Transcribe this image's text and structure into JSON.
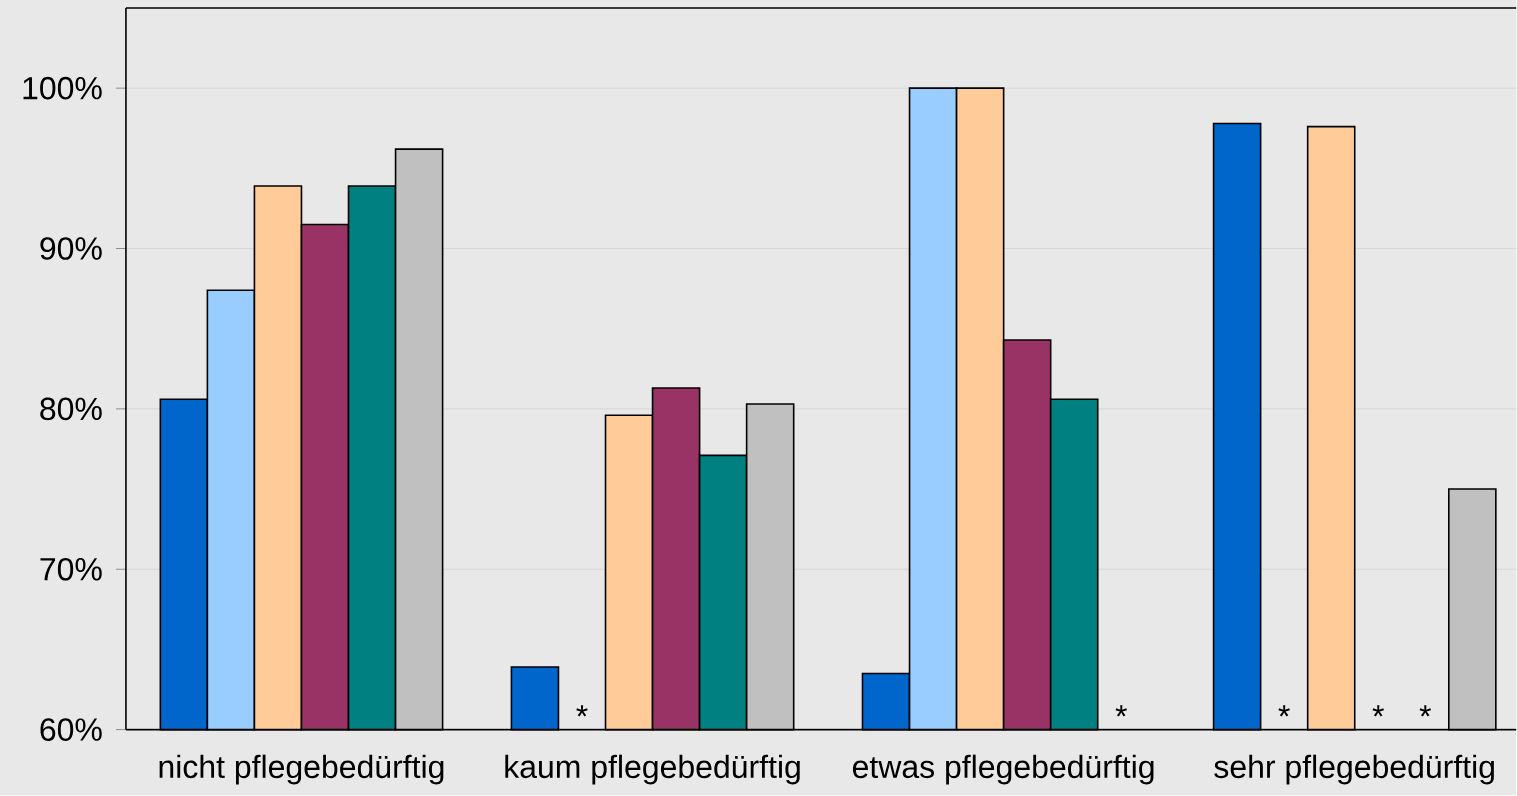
{
  "chart_data": {
    "type": "bar",
    "categories": [
      "nicht pflegebedürftig",
      "kaum pflegebedürftig",
      "etwas pflegebedürftig",
      "sehr pflegebedürftig"
    ],
    "series": [
      {
        "color": "#0066cc",
        "values": [
          80.6,
          63.9,
          63.5,
          97.8
        ]
      },
      {
        "color": "#99ccff",
        "values": [
          87.4,
          null,
          100,
          null
        ]
      },
      {
        "color": "#ffcc99",
        "values": [
          93.9,
          79.6,
          100,
          97.6
        ]
      },
      {
        "color": "#993366",
        "values": [
          91.5,
          81.3,
          84.3,
          null
        ]
      },
      {
        "color": "#008080",
        "values": [
          93.9,
          77.1,
          80.6,
          null
        ]
      },
      {
        "color": "#c0c0c0",
        "values": [
          96.2,
          80.3,
          null,
          75.0
        ]
      }
    ],
    "ylim": [
      60,
      105
    ],
    "yticks": [
      {
        "value": 60,
        "label": "60%"
      },
      {
        "value": 70,
        "label": "70%"
      },
      {
        "value": 80,
        "label": "80%"
      },
      {
        "value": 90,
        "label": "90%"
      },
      {
        "value": 100,
        "label": "100%"
      }
    ],
    "grid": "y",
    "annotations": [
      "*",
      "*",
      "*",
      "*",
      "*"
    ]
  }
}
